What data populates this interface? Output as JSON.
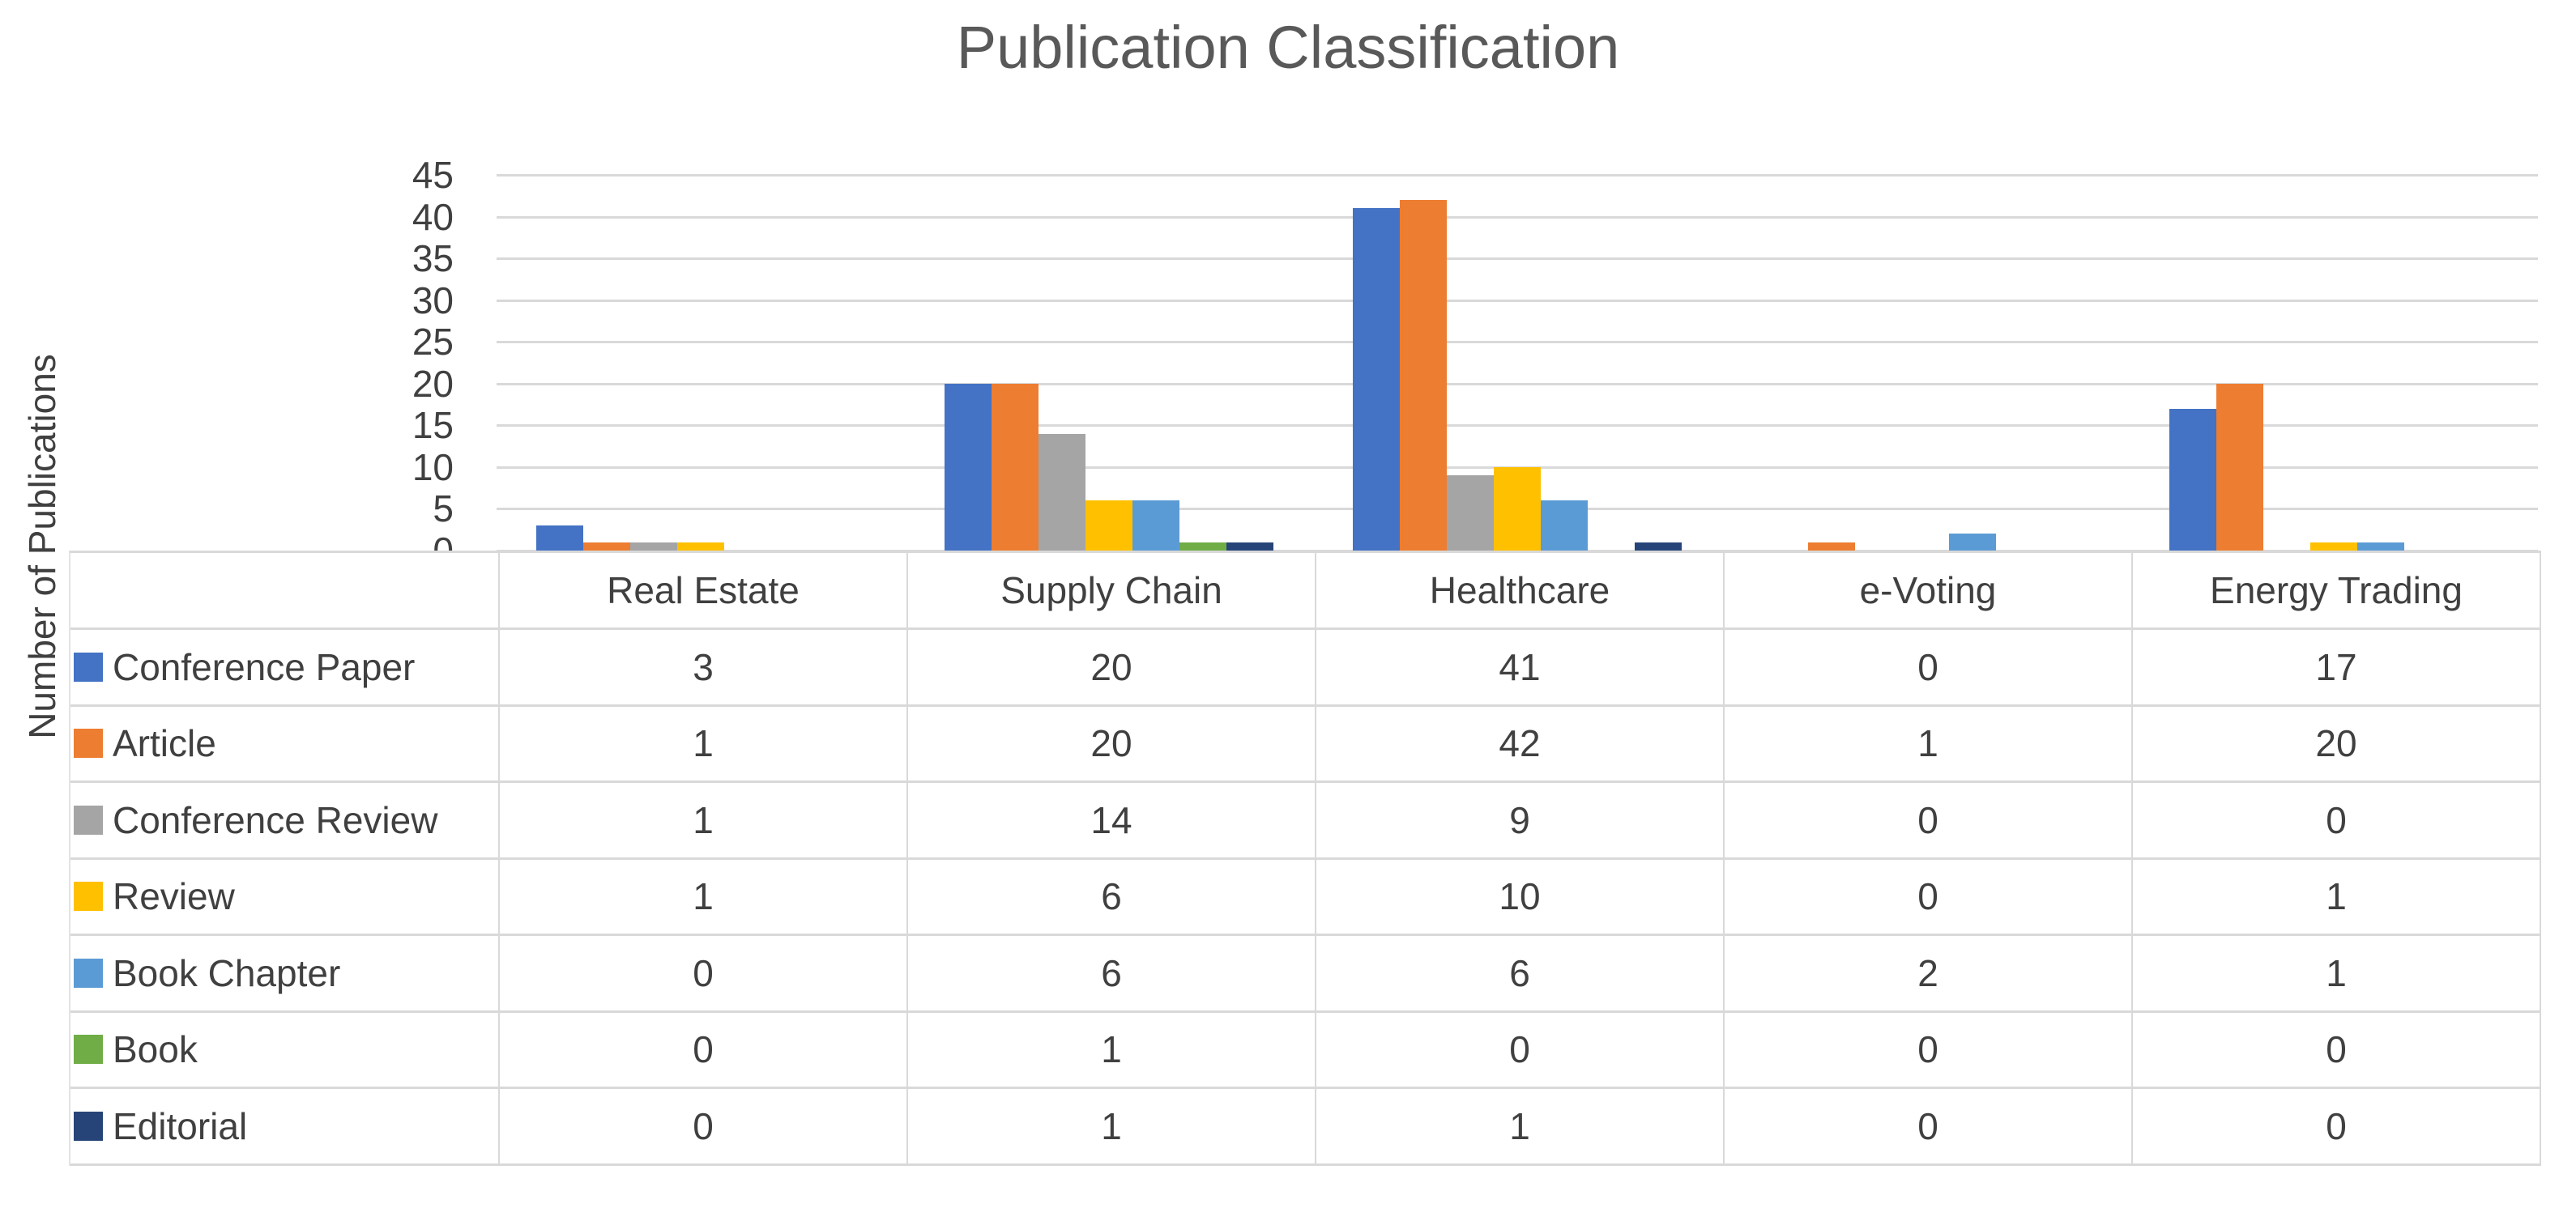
{
  "chart_data": {
    "type": "bar",
    "title": "Publication Classification",
    "ylabel": "Number of Publications",
    "xlabel": "",
    "categories": [
      "Real Estate",
      "Supply Chain",
      "Healthcare",
      "e-Voting",
      "Energy Trading"
    ],
    "series": [
      {
        "name": "Conference Paper",
        "color": "#4472C4",
        "values": [
          3,
          20,
          41,
          0,
          17
        ]
      },
      {
        "name": "Article",
        "color": "#ED7D31",
        "values": [
          1,
          20,
          42,
          1,
          20
        ]
      },
      {
        "name": "Conference Review",
        "color": "#A5A5A5",
        "values": [
          1,
          14,
          9,
          0,
          0
        ]
      },
      {
        "name": "Review",
        "color": "#FFC000",
        "values": [
          1,
          6,
          10,
          0,
          1
        ]
      },
      {
        "name": "Book Chapter",
        "color": "#5B9BD5",
        "values": [
          0,
          6,
          6,
          2,
          1
        ]
      },
      {
        "name": "Book",
        "color": "#70AD47",
        "values": [
          0,
          1,
          0,
          0,
          0
        ]
      },
      {
        "name": "Editorial",
        "color": "#264478",
        "values": [
          0,
          1,
          1,
          0,
          0
        ]
      }
    ],
    "y_axis": {
      "min": 0,
      "max": 45,
      "step": 5,
      "tick_labels": [
        "0",
        "5",
        "10",
        "15",
        "20",
        "25",
        "30",
        "35",
        "40",
        "45"
      ]
    },
    "grid": true,
    "legend_position": "data-table-left-column"
  },
  "colors": {
    "gridline": "#D9D9D9",
    "axis_text": "#404040",
    "title_text": "#595959",
    "table_border": "#D9D9D9",
    "background": "#FFFFFF"
  }
}
